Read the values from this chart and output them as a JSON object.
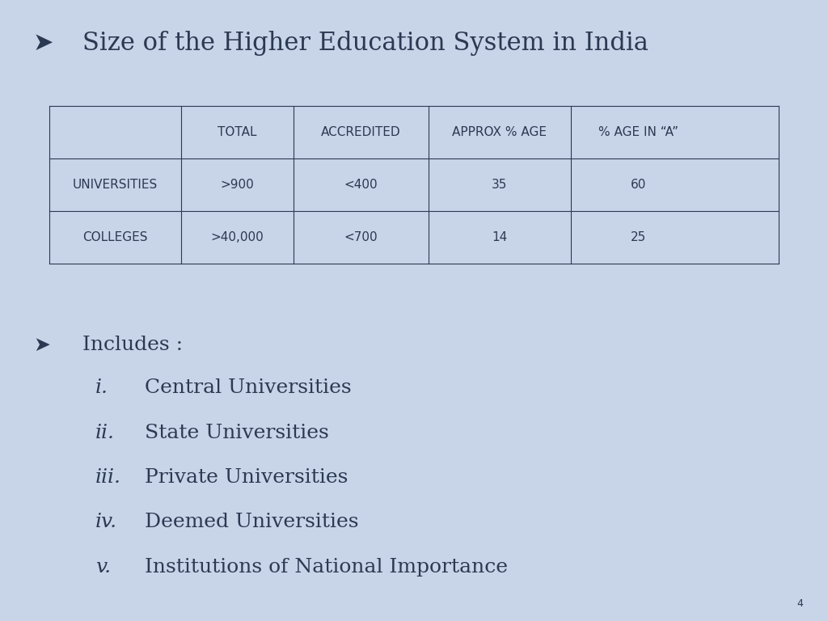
{
  "title": "Size of the Higher Education System in India",
  "background_color": "#c8d4e8",
  "text_color": "#2b3a52",
  "table_headers": [
    "",
    "TOTAL",
    "ACCREDITED",
    "APPROX % AGE",
    "% AGE IN “A”"
  ],
  "table_rows": [
    [
      "UNIVERSITIES",
      ">900",
      "<400",
      "35",
      "60"
    ],
    [
      "COLLEGES",
      ">40,000",
      "<700",
      "14",
      "25"
    ]
  ],
  "includes_title": "Includes :",
  "includes_items": [
    [
      "i.",
      "Central Universities"
    ],
    [
      "ii.",
      "State Universities"
    ],
    [
      "iii.",
      "Private Universities"
    ],
    [
      "iv.",
      "Deemed Universities"
    ],
    [
      "v.",
      "Institutions of National Importance"
    ]
  ],
  "page_number": "4",
  "title_fontsize": 22,
  "table_fontsize": 11,
  "body_fontsize": 18,
  "numeral_fontsize": 18
}
